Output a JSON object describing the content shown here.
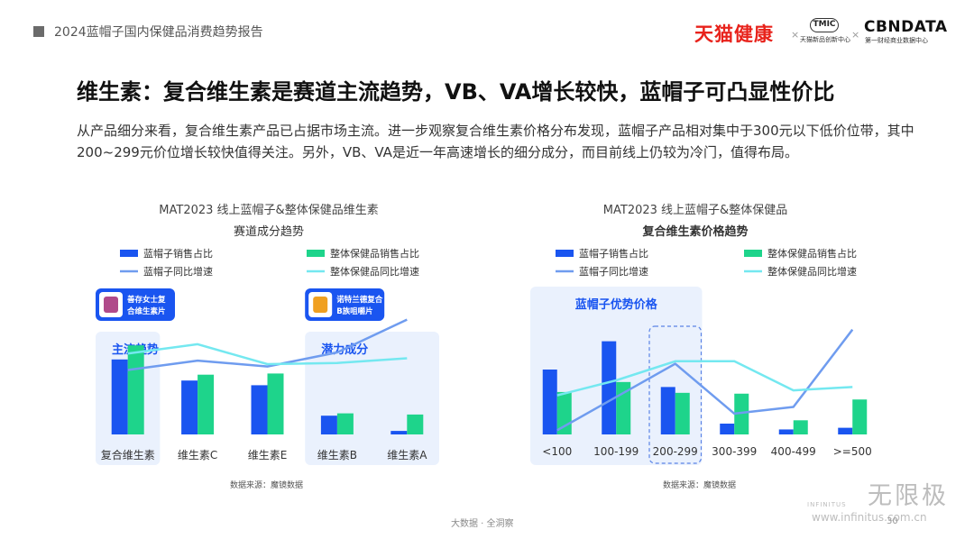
{
  "header": {
    "report_title": "2024蓝帽子国内保健品消费趋势报告",
    "logos": {
      "tmall": "天猫健康",
      "separator": "×",
      "tmic": "TMIC",
      "tmic_sub": "天猫新品创新中心",
      "cbndata": "CBNDATA",
      "cbndata_sub": "第一财经商业数据中心"
    }
  },
  "title": "维生素：复合维生素是赛道主流趋势，VB、VA增长较快，蓝帽子可凸显性价比",
  "description": "从产品细分来看，复合维生素产品已占据市场主流。进一步观察复合维生素价格分布发现，蓝帽子产品相对集中于300元以下低价位带，其中200~299元价位增长较快值得关注。另外，VB、VA是近一年高速增长的细分成分，而目前线上仍较为冷门，值得布局。",
  "colors": {
    "blue_bar": "#1a55f0",
    "green_bar": "#1ed48b",
    "blue_line": "#6f9cef",
    "cyan_line": "#74e8f0",
    "highlight_bg": "#eaf1fd",
    "highlight_text": "#1a55f0"
  },
  "legend": {
    "bar_blue": "蓝帽子销售占比",
    "bar_green": "整体保健品销售占比",
    "line_blue": "蓝帽子同比增速",
    "line_cyan": "整体保健品同比增速"
  },
  "chart_data": [
    {
      "type": "bar",
      "title": "MAT2023 线上蓝帽子&整体保健品维生素",
      "subtitle": "赛道成分趋势",
      "categories": [
        "复合维生素",
        "维生素C",
        "维生素E",
        "维生素B",
        "维生素A"
      ],
      "series": [
        {
          "name": "蓝帽子销售占比",
          "kind": "bar",
          "values": [
            64,
            46,
            42,
            16,
            3
          ]
        },
        {
          "name": "整体保健品销售占比",
          "kind": "bar",
          "values": [
            76,
            51,
            52,
            18,
            17
          ]
        },
        {
          "name": "蓝帽子同比增速",
          "kind": "line",
          "values": [
            55,
            63,
            58,
            70,
            98
          ]
        },
        {
          "name": "整体保健品同比增速",
          "kind": "line",
          "values": [
            69,
            77,
            60,
            61,
            65
          ]
        }
      ],
      "ylim": [
        0,
        100
      ],
      "highlight_groups": [
        {
          "label": "主流趋势",
          "start": 0,
          "end": 0
        },
        {
          "label": "潜力成分",
          "start": 3,
          "end": 4
        }
      ],
      "callouts": [
        {
          "text": "善存女士复合维生素片",
          "category": 0
        },
        {
          "text": "诺特兰德复合B族咀嚼片",
          "category": 3
        }
      ],
      "source": "数据来源：魔镜数据",
      "grid": false,
      "legend_position": "top"
    },
    {
      "type": "bar",
      "title": "MAT2023 线上蓝帽子&整体保健品",
      "subtitle": "复合维生素价格趋势",
      "categories": [
        "<100",
        "100-199",
        "200-299",
        "300-399",
        "400-499",
        ">=500"
      ],
      "series": [
        {
          "name": "蓝帽子销售占比",
          "kind": "bar",
          "values": [
            78,
            112,
            57,
            13,
            6,
            8
          ]
        },
        {
          "name": "整体保健品销售占比",
          "kind": "bar",
          "values": [
            51,
            63,
            50,
            49,
            17,
            42
          ]
        },
        {
          "name": "蓝帽子同比增速",
          "kind": "line",
          "values": [
            5,
            45,
            85,
            25,
            33,
            126
          ]
        },
        {
          "name": "整体保健品同比增速",
          "kind": "line",
          "values": [
            47,
            65,
            88,
            88,
            53,
            57
          ]
        }
      ],
      "ylim": [
        0,
        130
      ],
      "highlight_groups": [
        {
          "label": "蓝帽子优势价格",
          "start": 0,
          "end": 2
        }
      ],
      "focus_category": 2,
      "source": "数据来源：魔镜数据",
      "grid": false,
      "legend_position": "top"
    }
  ],
  "footer": {
    "center": "大数据 · 全洞察",
    "page_number": "30",
    "watermark_cn": "无限极",
    "watermark_en": "INFINITUS",
    "watermark_url": "www.infinitus.com.cn"
  }
}
